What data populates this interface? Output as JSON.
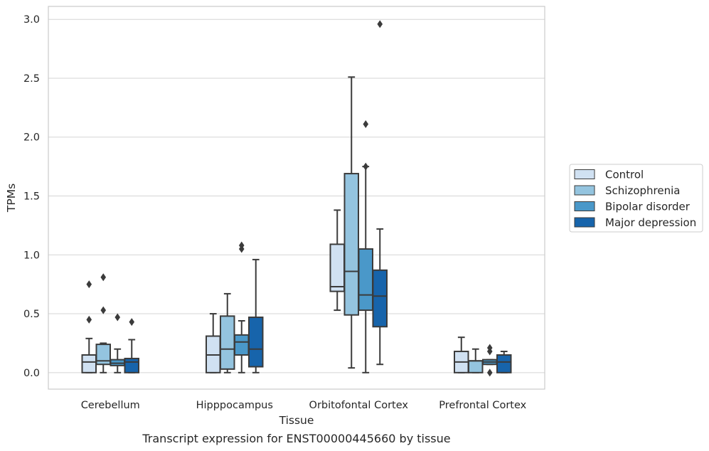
{
  "chart_data": {
    "type": "boxplot",
    "xlabel": "Tissue",
    "ylabel": "TPMs",
    "caption": "Transcript expression for ENST00000445660 by tissue",
    "ylim": [
      -0.14,
      3.11
    ],
    "yticks": [
      "0.0",
      "0.5",
      "1.0",
      "1.5",
      "2.0",
      "2.5",
      "3.0"
    ],
    "grid": "horizontal",
    "legend_position": "right",
    "categories": [
      "Cerebellum",
      "Hipppocampus",
      "Orbitofontal Cortex",
      "Prefrontal Cortex"
    ],
    "series": [
      {
        "name": "Control",
        "color": "#d0e1f2",
        "boxes": [
          {
            "whislo": 0.0,
            "q1": 0.0,
            "med": 0.09,
            "q3": 0.15,
            "whishi": 0.29,
            "fliers": [
              0.45,
              0.75
            ]
          },
          {
            "whislo": 0.0,
            "q1": 0.0,
            "med": 0.15,
            "q3": 0.31,
            "whishi": 0.5,
            "fliers": []
          },
          {
            "whislo": 0.53,
            "q1": 0.69,
            "med": 0.73,
            "q3": 1.09,
            "whishi": 1.38,
            "fliers": []
          },
          {
            "whislo": 0.0,
            "q1": 0.0,
            "med": 0.09,
            "q3": 0.18,
            "whishi": 0.3,
            "fliers": []
          }
        ]
      },
      {
        "name": "Schizophrenia",
        "color": "#94c4df",
        "boxes": [
          {
            "whislo": 0.0,
            "q1": 0.07,
            "med": 0.1,
            "q3": 0.24,
            "whishi": 0.25,
            "fliers": [
              0.53,
              0.81
            ]
          },
          {
            "whislo": 0.0,
            "q1": 0.03,
            "med": 0.2,
            "q3": 0.48,
            "whishi": 0.67,
            "fliers": []
          },
          {
            "whislo": 0.04,
            "q1": 0.49,
            "med": 0.86,
            "q3": 1.69,
            "whishi": 2.51,
            "fliers": []
          },
          {
            "whislo": 0.0,
            "q1": 0.0,
            "med": 0.1,
            "q3": 0.1,
            "whishi": 0.2,
            "fliers": []
          }
        ]
      },
      {
        "name": "Bipolar disorder",
        "color": "#4a98c9",
        "boxes": [
          {
            "whislo": 0.0,
            "q1": 0.06,
            "med": 0.08,
            "q3": 0.11,
            "whishi": 0.2,
            "fliers": [
              0.47
            ]
          },
          {
            "whislo": 0.0,
            "q1": 0.15,
            "med": 0.26,
            "q3": 0.32,
            "whishi": 0.44,
            "fliers": [
              1.05,
              1.08
            ]
          },
          {
            "whislo": 0.0,
            "q1": 0.53,
            "med": 0.66,
            "q3": 1.05,
            "whishi": 1.75,
            "fliers": [
              1.75,
              2.11
            ]
          },
          {
            "whislo": 0.07,
            "q1": 0.07,
            "med": 0.09,
            "q3": 0.11,
            "whishi": 0.11,
            "fliers": [
              0.0,
              0.18,
              0.21
            ]
          }
        ]
      },
      {
        "name": "Major depression",
        "color": "#1764ab",
        "boxes": [
          {
            "whislo": 0.0,
            "q1": 0.0,
            "med": 0.09,
            "q3": 0.12,
            "whishi": 0.28,
            "fliers": [
              0.43
            ]
          },
          {
            "whislo": 0.0,
            "q1": 0.05,
            "med": 0.2,
            "q3": 0.47,
            "whishi": 0.96,
            "fliers": []
          },
          {
            "whislo": 0.07,
            "q1": 0.39,
            "med": 0.65,
            "q3": 0.87,
            "whishi": 1.22,
            "fliers": [
              2.96
            ]
          },
          {
            "whislo": 0.0,
            "q1": 0.0,
            "med": 0.09,
            "q3": 0.15,
            "whishi": 0.18,
            "fliers": []
          }
        ]
      }
    ]
  }
}
